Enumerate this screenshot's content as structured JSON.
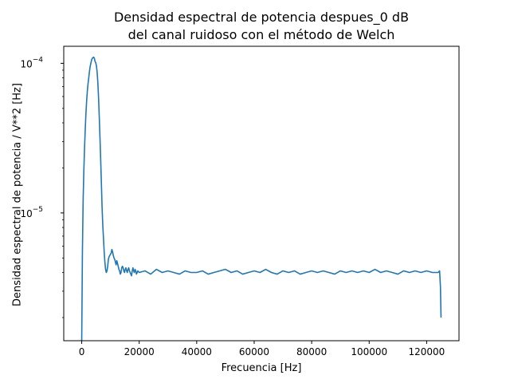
{
  "chart_data": {
    "type": "line",
    "title": "Densidad espectral de potencia despues_0 dB",
    "subtitle": "del canal ruidoso con el método de Welch",
    "xlabel": "Frecuencia [Hz]",
    "ylabel": "Densidad espectral de potencia / V**2 [Hz]",
    "xlim": [
      -6250,
      131250
    ],
    "ylim": [
      1.4e-06,
      0.00013
    ],
    "yscale": "log",
    "grid": false,
    "line_color": "#1f77b4",
    "xticks": [
      0,
      20000,
      40000,
      60000,
      80000,
      100000,
      120000
    ],
    "xtick_labels": [
      "0",
      "20000",
      "40000",
      "60000",
      "80000",
      "100000",
      "120000"
    ],
    "yticks": [
      1e-05,
      0.0001
    ],
    "ytick_labels": [
      {
        "base": "10",
        "exp": "−5"
      },
      {
        "base": "10",
        "exp": "−4"
      }
    ],
    "series": [
      {
        "x": [
          0,
          244,
          488,
          732,
          977,
          1221,
          1465,
          1709,
          1953,
          2197,
          2441,
          2686,
          2930,
          3174,
          3418,
          3662,
          3906,
          4150,
          4395,
          4639,
          4883,
          5127,
          5371,
          5615,
          5859,
          6104,
          6348,
          6592,
          6836,
          7080,
          7324,
          7568,
          7813,
          8057,
          8301,
          8545,
          8789,
          9033,
          9277,
          9521,
          9766,
          10010,
          10254,
          10498,
          10742,
          10986,
          11230,
          11475,
          11719,
          11963,
          12207,
          12451,
          12695,
          12939,
          13184,
          13428,
          13672,
          13916,
          14160,
          14404,
          14648,
          14893,
          15137,
          15381,
          15625,
          15869,
          16113,
          16357,
          16602,
          16846,
          17090,
          17334,
          17578,
          17822,
          18066,
          18311,
          18555,
          18799,
          19043,
          19287,
          19531,
          20000,
          22000,
          24000,
          26000,
          28000,
          30000,
          32000,
          34000,
          36000,
          38000,
          40000,
          42000,
          44000,
          46000,
          48000,
          50000,
          52000,
          54000,
          56000,
          58000,
          60000,
          62000,
          64000,
          66000,
          68000,
          70000,
          72000,
          74000,
          76000,
          78000,
          80000,
          82000,
          84000,
          86000,
          88000,
          90000,
          92000,
          94000,
          96000,
          98000,
          100000,
          102000,
          104000,
          106000,
          108000,
          110000,
          112000,
          114000,
          116000,
          118000,
          120000,
          122000,
          123500,
          124000,
          124500,
          124800,
          125000
        ],
        "values": [
          1.4e-06,
          5.5e-06,
          1.2e-05,
          1.9e-05,
          2.7e-05,
          3.6e-05,
          4.6e-05,
          5.6e-05,
          6.5e-05,
          7.3e-05,
          8e-05,
          8.8e-05,
          9.5e-05,
          0.0001,
          0.000105,
          0.000108,
          0.000109,
          0.00011,
          0.000108,
          0.000103,
          0.000101,
          9.6e-05,
          8.7e-05,
          7.4e-05,
          5.9e-05,
          4.4e-05,
          3.2e-05,
          2.3e-05,
          1.6e-05,
          1.1e-05,
          8.3e-06,
          6.8e-06,
          5.5e-06,
          4.7e-06,
          4.2e-06,
          4e-06,
          4.1e-06,
          4.4e-06,
          4.9e-06,
          5.1e-06,
          5.2e-06,
          5.3e-06,
          5.4e-06,
          5.7e-06,
          5.5e-06,
          5.2e-06,
          5e-06,
          4.9e-06,
          4.7e-06,
          4.5e-06,
          4.8e-06,
          4.6e-06,
          4.4e-06,
          4.2e-06,
          4.1e-06,
          3.9e-06,
          4e-06,
          4.3e-06,
          4.4e-06,
          4.3e-06,
          4.1e-06,
          4e-06,
          4.2e-06,
          4.3e-06,
          4.1e-06,
          4e-06,
          4.2e-06,
          4.3e-06,
          4.1e-06,
          4e-06,
          3.9e-06,
          3.8e-06,
          4.1e-06,
          4.3e-06,
          4.1e-06,
          4e-06,
          4.2e-06,
          4.1e-06,
          3.9e-06,
          4e-06,
          4.1e-06,
          4e-06,
          4.1e-06,
          3.9e-06,
          4.2e-06,
          4e-06,
          4.1e-06,
          4e-06,
          3.9e-06,
          4.1e-06,
          4e-06,
          4e-06,
          4.1e-06,
          3.9e-06,
          4e-06,
          4.1e-06,
          4.2e-06,
          4e-06,
          4.1e-06,
          3.9e-06,
          4e-06,
          4.1e-06,
          4e-06,
          4.2e-06,
          4e-06,
          3.9e-06,
          4.1e-06,
          4e-06,
          4.1e-06,
          3.9e-06,
          4e-06,
          4.1e-06,
          4e-06,
          4.1e-06,
          4e-06,
          3.9e-06,
          4.1e-06,
          4e-06,
          4.1e-06,
          4e-06,
          4.1e-06,
          4e-06,
          4.2e-06,
          4e-06,
          4.1e-06,
          4e-06,
          3.9e-06,
          4.1e-06,
          4e-06,
          4.1e-06,
          4e-06,
          4.1e-06,
          4e-06,
          4e-06,
          4e-06,
          4.1e-06,
          3.2e-06,
          2e-06
        ]
      }
    ]
  }
}
